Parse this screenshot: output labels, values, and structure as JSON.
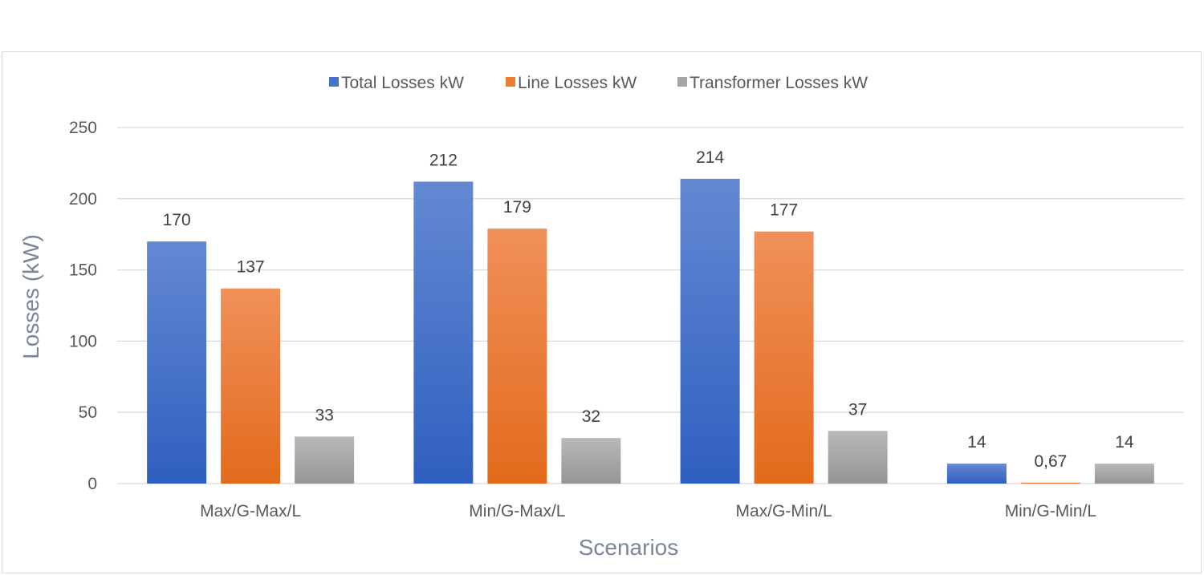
{
  "chart_data": {
    "type": "bar",
    "title": "",
    "xlabel": "Scenarios",
    "ylabel": "Losses (kW)",
    "ylim": [
      0,
      250
    ],
    "yticks": [
      0,
      50,
      100,
      150,
      200,
      250
    ],
    "grid": true,
    "legend_position": "top-center",
    "categories": [
      "Max/G-Max/L",
      "Min/G-Max/L",
      "Max/G-Min/L",
      "Min/G-Min/L"
    ],
    "series": [
      {
        "name": "Total Losses kW",
        "values": [
          170,
          212,
          214,
          14
        ],
        "labels": [
          "170",
          "212",
          "214",
          "14"
        ],
        "color": "#4472c4",
        "color_dark": "#2f5fbf",
        "color_light": "#6389d3"
      },
      {
        "name": "Line Losses kW",
        "values": [
          137,
          179,
          177,
          0.67
        ],
        "labels": [
          "137",
          "179",
          "177",
          "0,67"
        ],
        "color": "#ed7d31",
        "color_dark": "#e36a1b",
        "color_light": "#f0905a"
      },
      {
        "name": "Transformer Losses kW",
        "values": [
          33,
          32,
          37,
          14
        ],
        "labels": [
          "33",
          "32",
          "37",
          "14"
        ],
        "color": "#a5a5a5",
        "color_dark": "#959595",
        "color_light": "#b8b8b8"
      }
    ]
  }
}
